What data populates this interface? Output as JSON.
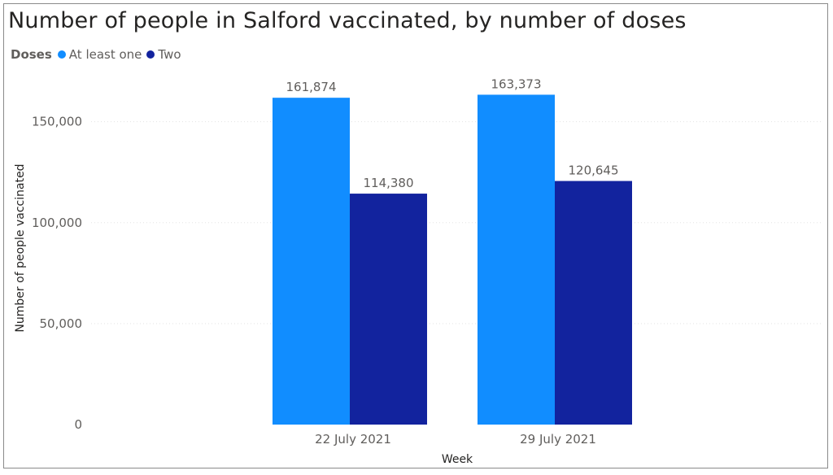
{
  "chart_data": {
    "type": "bar",
    "title": "Number of people in Salford vaccinated, by number of doses",
    "legend_title": "Doses",
    "legend_placement": "top-left",
    "xlabel": "Week",
    "ylabel": "Number of people vaccinated",
    "categories": [
      "22 July 2021",
      "29 July 2021"
    ],
    "series": [
      {
        "name": "At least one",
        "color": "#118dff",
        "values": [
          161874,
          163373
        ],
        "labels": [
          "161,874",
          "163,373"
        ]
      },
      {
        "name": "Two",
        "color": "#12239e",
        "values": [
          114380,
          120645
        ],
        "labels": [
          "114,380",
          "120,645"
        ]
      }
    ],
    "ylim": [
      0,
      170000
    ],
    "yticks": [
      0,
      50000,
      100000,
      150000
    ],
    "ytick_labels": [
      "0",
      "50,000",
      "100,000",
      "150,000"
    ],
    "grid": true
  }
}
